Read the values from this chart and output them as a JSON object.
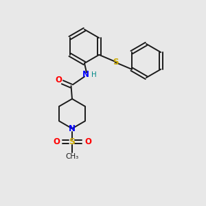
{
  "background_color": "#e8e8e8",
  "bond_color": "#1a1a1a",
  "N_color": "#0000ff",
  "O_color": "#ff0000",
  "S_color": "#ccaa00",
  "H_color": "#008888",
  "figsize": [
    3.0,
    3.0
  ],
  "dpi": 100,
  "xlim": [
    0,
    10
  ],
  "ylim": [
    0,
    10
  ]
}
